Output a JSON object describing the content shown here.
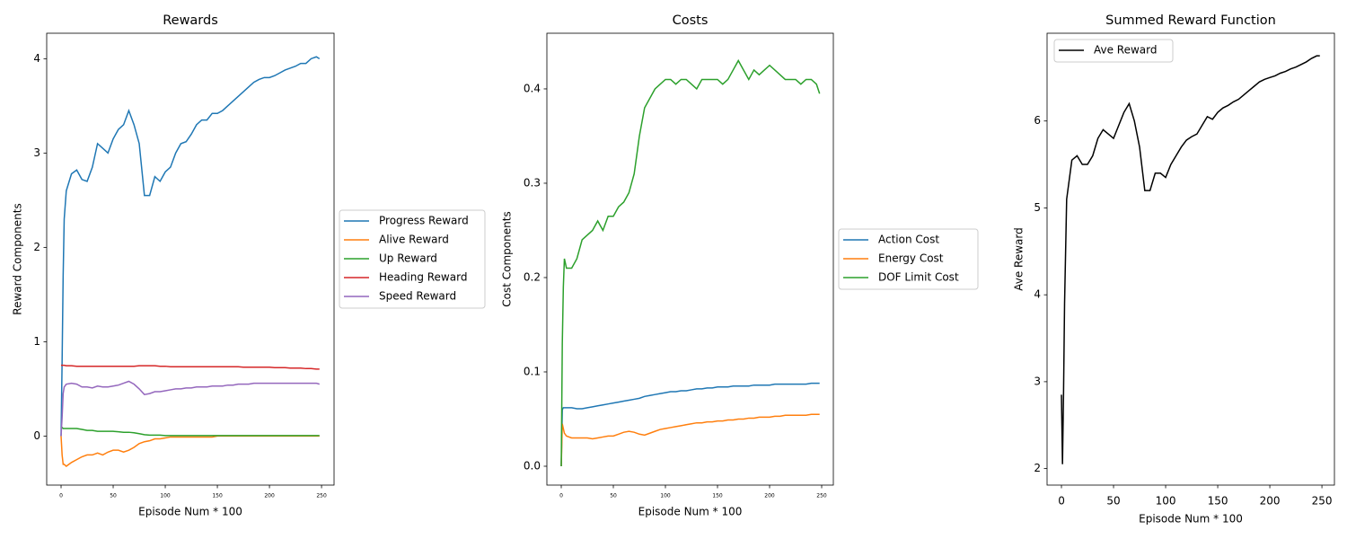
{
  "chart_data": [
    {
      "type": "line",
      "title": "Rewards",
      "x_label": "Episode Num * 100",
      "y_label": "Reward Components",
      "legend": "center right outside",
      "x": [
        0,
        1,
        2,
        3,
        5,
        10,
        15,
        20,
        25,
        30,
        35,
        40,
        45,
        50,
        55,
        60,
        65,
        70,
        75,
        80,
        85,
        90,
        95,
        100,
        105,
        110,
        115,
        120,
        125,
        130,
        135,
        140,
        145,
        150,
        155,
        160,
        165,
        170,
        175,
        180,
        185,
        190,
        195,
        200,
        205,
        210,
        215,
        220,
        225,
        230,
        235,
        240,
        245,
        248
      ],
      "xlim": [
        -13.8,
        262
      ],
      "xticks": [
        0,
        50,
        100,
        150,
        200,
        250
      ],
      "ylim": [
        -0.52,
        4.27
      ],
      "yticks": [
        0,
        1,
        2,
        3,
        4
      ],
      "series": [
        {
          "name": "Progress Reward",
          "color": "#1f77b4",
          "values": [
            0,
            0.8,
            1.7,
            2.3,
            2.6,
            2.78,
            2.82,
            2.72,
            2.7,
            2.85,
            3.1,
            3.05,
            3.0,
            3.15,
            3.25,
            3.3,
            3.45,
            3.3,
            3.1,
            2.55,
            2.55,
            2.75,
            2.7,
            2.8,
            2.85,
            3.0,
            3.1,
            3.12,
            3.2,
            3.3,
            3.35,
            3.35,
            3.42,
            3.42,
            3.45,
            3.5,
            3.55,
            3.6,
            3.65,
            3.7,
            3.75,
            3.78,
            3.8,
            3.8,
            3.82,
            3.85,
            3.88,
            3.9,
            3.92,
            3.95,
            3.95,
            4.0,
            4.02,
            4.0
          ]
        },
        {
          "name": "Alive Reward",
          "color": "#ff7f0e",
          "values": [
            0,
            -0.2,
            -0.3,
            -0.3,
            -0.32,
            -0.28,
            -0.25,
            -0.22,
            -0.2,
            -0.2,
            -0.18,
            -0.2,
            -0.17,
            -0.15,
            -0.15,
            -0.17,
            -0.15,
            -0.12,
            -0.08,
            -0.06,
            -0.05,
            -0.03,
            -0.03,
            -0.02,
            -0.01,
            -0.01,
            -0.01,
            -0.01,
            -0.01,
            -0.01,
            -0.01,
            -0.01,
            -0.01,
            0,
            0,
            0,
            0,
            0,
            0,
            0,
            0,
            0,
            0,
            0,
            0,
            0,
            0,
            0,
            0,
            0,
            0,
            0,
            0,
            0
          ]
        },
        {
          "name": "Up Reward",
          "color": "#2ca02c",
          "values": [
            0.1,
            0.09,
            0.08,
            0.08,
            0.08,
            0.08,
            0.08,
            0.07,
            0.06,
            0.06,
            0.05,
            0.05,
            0.05,
            0.05,
            0.045,
            0.04,
            0.04,
            0.035,
            0.025,
            0.015,
            0.01,
            0.01,
            0.01,
            0.005,
            0.005,
            0.005,
            0.005,
            0.005,
            0.005,
            0.005,
            0.005,
            0.005,
            0.005,
            0.005,
            0.005,
            0.005,
            0.005,
            0.005,
            0.005,
            0.005,
            0.005,
            0.005,
            0.005,
            0.005,
            0.005,
            0.005,
            0.005,
            0.005,
            0.005,
            0.005,
            0.005,
            0.005,
            0.005,
            0.005
          ]
        },
        {
          "name": "Heading Reward",
          "color": "#d62728",
          "values": [
            0.75,
            0.75,
            0.75,
            0.75,
            0.745,
            0.745,
            0.74,
            0.74,
            0.74,
            0.74,
            0.74,
            0.74,
            0.74,
            0.74,
            0.74,
            0.74,
            0.74,
            0.74,
            0.745,
            0.745,
            0.745,
            0.745,
            0.74,
            0.74,
            0.735,
            0.735,
            0.735,
            0.735,
            0.735,
            0.735,
            0.735,
            0.735,
            0.735,
            0.735,
            0.735,
            0.735,
            0.735,
            0.735,
            0.73,
            0.73,
            0.73,
            0.73,
            0.73,
            0.73,
            0.725,
            0.725,
            0.725,
            0.72,
            0.72,
            0.72,
            0.715,
            0.715,
            0.71,
            0.71
          ]
        },
        {
          "name": "Speed Reward",
          "color": "#9467bd",
          "values": [
            0,
            0.2,
            0.45,
            0.52,
            0.55,
            0.56,
            0.55,
            0.52,
            0.52,
            0.51,
            0.53,
            0.52,
            0.52,
            0.53,
            0.54,
            0.56,
            0.58,
            0.55,
            0.5,
            0.44,
            0.45,
            0.47,
            0.47,
            0.48,
            0.49,
            0.5,
            0.5,
            0.51,
            0.51,
            0.52,
            0.52,
            0.52,
            0.53,
            0.53,
            0.53,
            0.54,
            0.54,
            0.55,
            0.55,
            0.55,
            0.56,
            0.56,
            0.56,
            0.56,
            0.56,
            0.56,
            0.56,
            0.56,
            0.56,
            0.56,
            0.56,
            0.56,
            0.56,
            0.55
          ]
        }
      ]
    },
    {
      "type": "line",
      "title": "Costs",
      "x_label": "Episode Num * 100",
      "y_label": "Cost Components",
      "legend": "center right outside",
      "x": [
        0,
        1,
        2,
        3,
        5,
        10,
        15,
        20,
        25,
        30,
        35,
        40,
        45,
        50,
        55,
        60,
        65,
        70,
        75,
        80,
        85,
        90,
        95,
        100,
        105,
        110,
        115,
        120,
        125,
        130,
        135,
        140,
        145,
        150,
        155,
        160,
        165,
        170,
        175,
        180,
        185,
        190,
        195,
        200,
        205,
        210,
        215,
        220,
        225,
        230,
        235,
        240,
        245,
        248
      ],
      "xlim": [
        -13.8,
        261.2
      ],
      "xticks": [
        0,
        50,
        100,
        150,
        200,
        250
      ],
      "ylim": [
        -0.02,
        0.459
      ],
      "yticks": [
        {
          "value": 0,
          "label": "0.0"
        },
        0.1,
        0.2,
        0.3,
        0.4
      ],
      "series": [
        {
          "name": "Action Cost",
          "color": "#1f77b4",
          "values": [
            0,
            0.06,
            0.062,
            0.062,
            0.062,
            0.062,
            0.061,
            0.061,
            0.062,
            0.063,
            0.064,
            0.065,
            0.066,
            0.067,
            0.068,
            0.069,
            0.07,
            0.071,
            0.072,
            0.074,
            0.075,
            0.076,
            0.077,
            0.078,
            0.079,
            0.079,
            0.08,
            0.08,
            0.081,
            0.082,
            0.082,
            0.083,
            0.083,
            0.084,
            0.084,
            0.084,
            0.085,
            0.085,
            0.085,
            0.085,
            0.086,
            0.086,
            0.086,
            0.086,
            0.087,
            0.087,
            0.087,
            0.087,
            0.087,
            0.087,
            0.087,
            0.088,
            0.088,
            0.088
          ]
        },
        {
          "name": "Energy Cost",
          "color": "#ff7f0e",
          "values": [
            0,
            0.045,
            0.04,
            0.035,
            0.032,
            0.03,
            0.03,
            0.03,
            0.03,
            0.029,
            0.03,
            0.031,
            0.032,
            0.032,
            0.034,
            0.036,
            0.037,
            0.036,
            0.034,
            0.033,
            0.035,
            0.037,
            0.039,
            0.04,
            0.041,
            0.042,
            0.043,
            0.044,
            0.045,
            0.046,
            0.046,
            0.047,
            0.047,
            0.048,
            0.048,
            0.049,
            0.049,
            0.05,
            0.05,
            0.051,
            0.051,
            0.052,
            0.052,
            0.052,
            0.053,
            0.053,
            0.054,
            0.054,
            0.054,
            0.054,
            0.054,
            0.055,
            0.055,
            0.055
          ]
        },
        {
          "name": "DOF Limit Cost",
          "color": "#2ca02c",
          "values": [
            0,
            0.13,
            0.19,
            0.22,
            0.21,
            0.21,
            0.22,
            0.24,
            0.245,
            0.25,
            0.26,
            0.25,
            0.265,
            0.265,
            0.275,
            0.28,
            0.29,
            0.31,
            0.35,
            0.38,
            0.39,
            0.4,
            0.405,
            0.41,
            0.41,
            0.405,
            0.41,
            0.41,
            0.405,
            0.4,
            0.41,
            0.41,
            0.41,
            0.41,
            0.405,
            0.41,
            0.42,
            0.43,
            0.42,
            0.41,
            0.42,
            0.415,
            0.42,
            0.425,
            0.42,
            0.415,
            0.41,
            0.41,
            0.41,
            0.405,
            0.41,
            0.41,
            0.405,
            0.395
          ]
        }
      ]
    },
    {
      "type": "line",
      "title": "Summed Reward Function",
      "x_label": "Episode Num * 100",
      "y_label": "Ave Reward",
      "legend": "upper left",
      "x": [
        0,
        1,
        2,
        3,
        5,
        10,
        15,
        20,
        25,
        30,
        35,
        40,
        45,
        50,
        55,
        60,
        65,
        70,
        75,
        80,
        85,
        90,
        95,
        100,
        105,
        110,
        115,
        120,
        125,
        130,
        135,
        140,
        145,
        150,
        155,
        160,
        165,
        170,
        175,
        180,
        185,
        190,
        195,
        200,
        205,
        210,
        215,
        220,
        225,
        230,
        235,
        240,
        245,
        248
      ],
      "xlim": [
        -13.8,
        262
      ],
      "xticks": [
        0,
        50,
        100,
        150,
        200,
        250
      ],
      "ylim": [
        1.81,
        7.01
      ],
      "yticks": [
        2,
        3,
        4,
        5,
        6
      ],
      "series": [
        {
          "name": "Ave Reward",
          "color": "#000000",
          "values": [
            2.85,
            2.05,
            2.85,
            3.9,
            5.1,
            5.55,
            5.6,
            5.5,
            5.5,
            5.6,
            5.8,
            5.9,
            5.85,
            5.8,
            5.95,
            6.1,
            6.2,
            6.0,
            5.7,
            5.2,
            5.2,
            5.4,
            5.4,
            5.35,
            5.5,
            5.6,
            5.7,
            5.78,
            5.82,
            5.85,
            5.95,
            6.05,
            6.02,
            6.1,
            6.15,
            6.18,
            6.22,
            6.25,
            6.3,
            6.35,
            6.4,
            6.45,
            6.48,
            6.5,
            6.52,
            6.55,
            6.57,
            6.6,
            6.62,
            6.65,
            6.68,
            6.72,
            6.75,
            6.75
          ]
        }
      ]
    }
  ]
}
